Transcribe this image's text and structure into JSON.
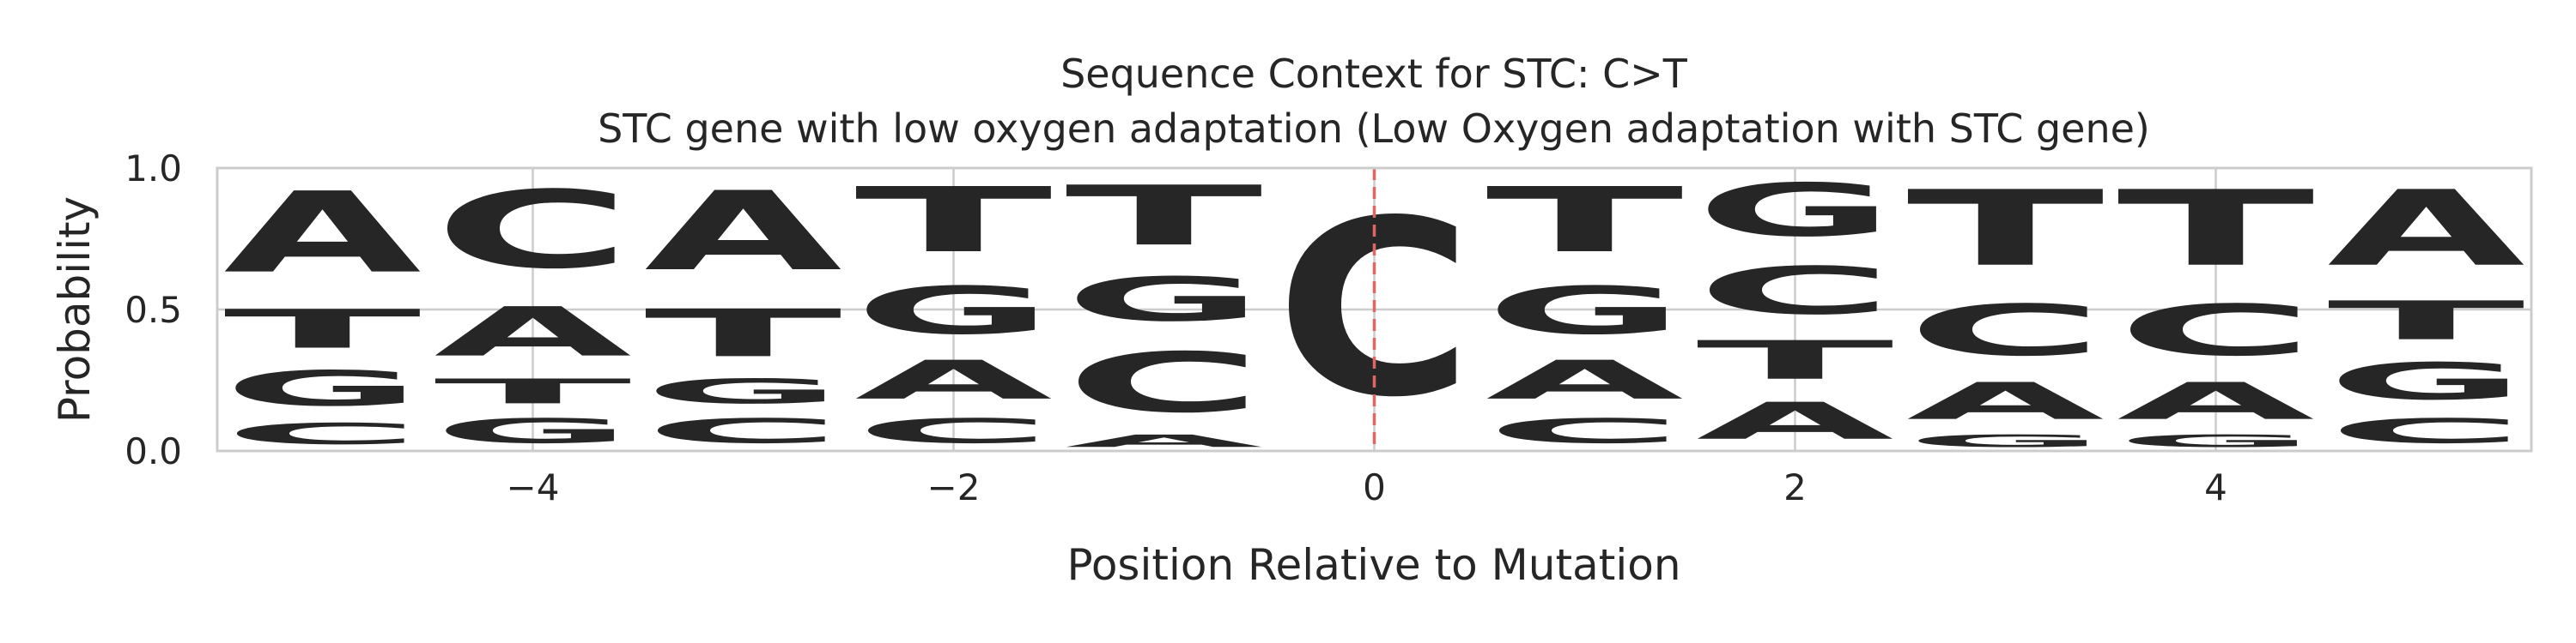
{
  "chart_data": {
    "type": "sequence-logo",
    "title": "Sequence Context for STC: C>T",
    "subtitle": "STC gene with low oxygen adaptation (Low Oxygen adaptation with STC gene)",
    "xlabel": "Position Relative to Mutation",
    "ylabel": "Probability",
    "xlim": [
      -5.5,
      5.5
    ],
    "ylim": [
      0,
      1.0
    ],
    "xticks": [
      -4,
      -2,
      0,
      2,
      4
    ],
    "xtick_labels": [
      "−4",
      "−2",
      "0",
      "2",
      "4"
    ],
    "yticks": [
      0,
      0.5,
      1.0
    ],
    "ytick_labels": [
      "0.0",
      "0.5",
      "1.0"
    ],
    "grid": true,
    "mutation_marker": 0,
    "colors": {
      "A": "#008000",
      "C": "#0000ff",
      "G": "#ffa500",
      "T": "#ff0000",
      "marker": "#e06666",
      "grid": "#cccccc",
      "frame": "#cccccc"
    },
    "positions": [
      {
        "x": -5,
        "stack": [
          [
            "C",
            0.12
          ],
          [
            "G",
            0.2
          ],
          [
            "T",
            0.22
          ],
          [
            "A",
            0.46
          ]
        ]
      },
      {
        "x": -4,
        "stack": [
          [
            "G",
            0.14
          ],
          [
            "T",
            0.14
          ],
          [
            "A",
            0.28
          ],
          [
            "C",
            0.44
          ]
        ]
      },
      {
        "x": -3,
        "stack": [
          [
            "C",
            0.14
          ],
          [
            "G",
            0.14
          ],
          [
            "T",
            0.27
          ],
          [
            "A",
            0.45
          ]
        ]
      },
      {
        "x": -2,
        "stack": [
          [
            "C",
            0.14
          ],
          [
            "A",
            0.22
          ],
          [
            "G",
            0.27
          ],
          [
            "T",
            0.37
          ]
        ]
      },
      {
        "x": -1,
        "stack": [
          [
            "A",
            0.07
          ],
          [
            "C",
            0.34
          ],
          [
            "G",
            0.25
          ],
          [
            "T",
            0.34
          ]
        ]
      },
      {
        "x": 0,
        "stack": [
          [
            "C",
            1.0
          ]
        ]
      },
      {
        "x": 1,
        "stack": [
          [
            "C",
            0.14
          ],
          [
            "A",
            0.22
          ],
          [
            "G",
            0.27
          ],
          [
            "T",
            0.37
          ]
        ]
      },
      {
        "x": 2,
        "stack": [
          [
            "A",
            0.21
          ],
          [
            "T",
            0.22
          ],
          [
            "C",
            0.27
          ],
          [
            "G",
            0.3
          ]
        ]
      },
      {
        "x": 3,
        "stack": [
          [
            "G",
            0.07
          ],
          [
            "A",
            0.21
          ],
          [
            "C",
            0.29
          ],
          [
            "T",
            0.43
          ]
        ]
      },
      {
        "x": 4,
        "stack": [
          [
            "G",
            0.07
          ],
          [
            "A",
            0.21
          ],
          [
            "C",
            0.29
          ],
          [
            "T",
            0.43
          ]
        ]
      },
      {
        "x": 5,
        "stack": [
          [
            "C",
            0.14
          ],
          [
            "G",
            0.21
          ],
          [
            "T",
            0.22
          ],
          [
            "A",
            0.43
          ]
        ]
      }
    ]
  }
}
